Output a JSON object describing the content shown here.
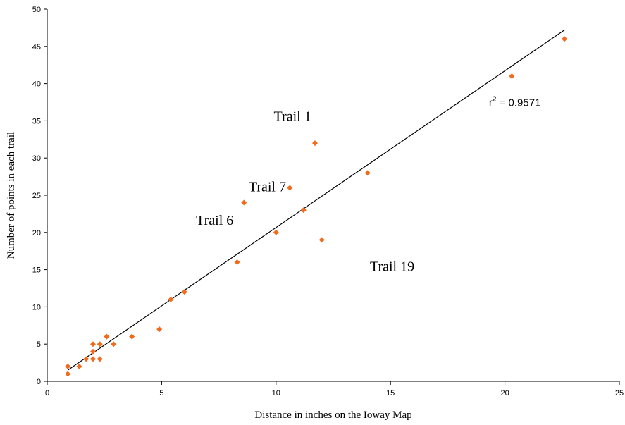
{
  "chart_data": {
    "type": "scatter",
    "xlabel": "Distance in inches on the Ioway Map",
    "ylabel": "Number of points in each trail",
    "xlim": [
      0,
      25
    ],
    "ylim": [
      0,
      50
    ],
    "x_ticks": [
      "0",
      "5",
      "10",
      "15",
      "20",
      "25"
    ],
    "y_ticks": [
      "0",
      "5",
      "10",
      "15",
      "20",
      "25",
      "30",
      "35",
      "40",
      "45",
      "50"
    ],
    "grid": false,
    "marker_color": "#F26B1D",
    "series": [
      {
        "points": [
          {
            "x": 0.9,
            "y": 1
          },
          {
            "x": 0.9,
            "y": 2
          },
          {
            "x": 1.4,
            "y": 2
          },
          {
            "x": 1.7,
            "y": 3
          },
          {
            "x": 2.0,
            "y": 3
          },
          {
            "x": 2.0,
            "y": 4
          },
          {
            "x": 2.0,
            "y": 5
          },
          {
            "x": 2.3,
            "y": 3
          },
          {
            "x": 2.3,
            "y": 5
          },
          {
            "x": 2.6,
            "y": 6
          },
          {
            "x": 2.9,
            "y": 5
          },
          {
            "x": 3.7,
            "y": 6
          },
          {
            "x": 4.9,
            "y": 7
          },
          {
            "x": 5.4,
            "y": 11
          },
          {
            "x": 6.0,
            "y": 12
          },
          {
            "x": 8.3,
            "y": 16
          },
          {
            "x": 8.6,
            "y": 24
          },
          {
            "x": 10.0,
            "y": 20
          },
          {
            "x": 10.6,
            "y": 26
          },
          {
            "x": 11.2,
            "y": 23
          },
          {
            "x": 11.7,
            "y": 32
          },
          {
            "x": 12.0,
            "y": 19
          },
          {
            "x": 14.0,
            "y": 28
          },
          {
            "x": 20.3,
            "y": 41
          },
          {
            "x": 22.6,
            "y": 46
          }
        ]
      }
    ],
    "trendline": {
      "x": [
        0.9,
        22.6
      ],
      "y": [
        1.5,
        47.2
      ],
      "color": "#000000"
    },
    "r2": {
      "prefix": "r",
      "exponent": "2",
      "value": " = 0.9571"
    },
    "annotations": [
      {
        "text": "Trail 1",
        "x": 9.9,
        "y": 35
      },
      {
        "text": "Trail 7",
        "x": 8.8,
        "y": 25.5
      },
      {
        "text": "Trail 6",
        "x": 6.5,
        "y": 21
      },
      {
        "text": "Trail 19",
        "x": 14.1,
        "y": 14.8
      }
    ],
    "r2_position": {
      "x": 19.3,
      "y": 37
    }
  }
}
